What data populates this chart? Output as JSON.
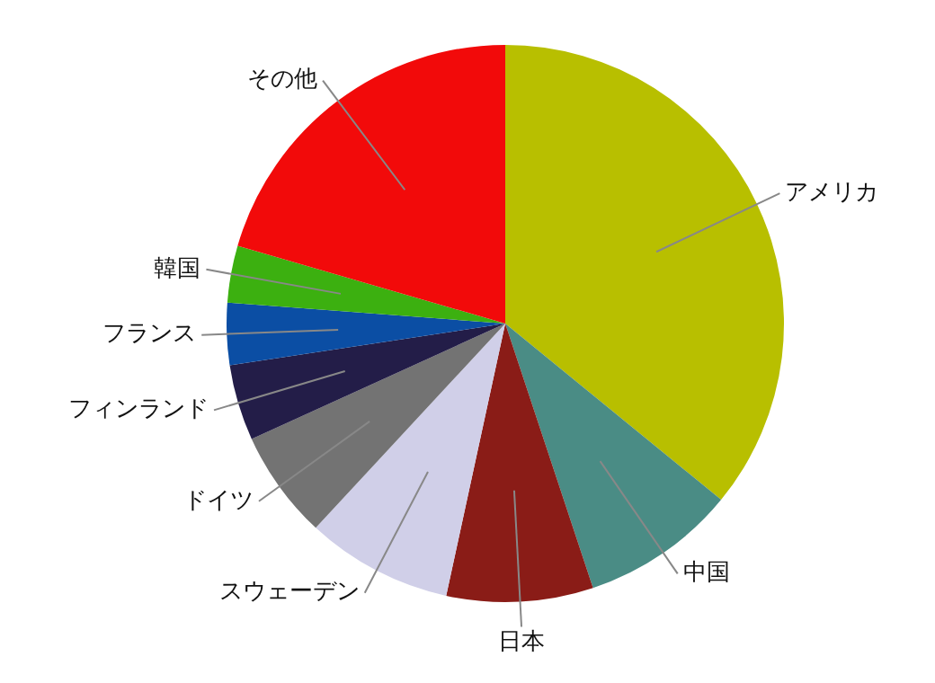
{
  "chart_data": {
    "type": "pie",
    "categories": [
      "アメリカ",
      "中国",
      "日本",
      "スウェーデン",
      "ドイツ",
      "フィンランド",
      "フランス",
      "韓国",
      "その他"
    ],
    "values": [
      35.9,
      9,
      8.5,
      8.5,
      6.3,
      4.4,
      3.6,
      3.3,
      20.5
    ],
    "colors": [
      "#b8bf00",
      "#4a8c85",
      "#8a1c17",
      "#d0cfe8",
      "#737373",
      "#231d48",
      "#0b4ea4",
      "#3cb010",
      "#f20a0a"
    ],
    "legend": false
  }
}
